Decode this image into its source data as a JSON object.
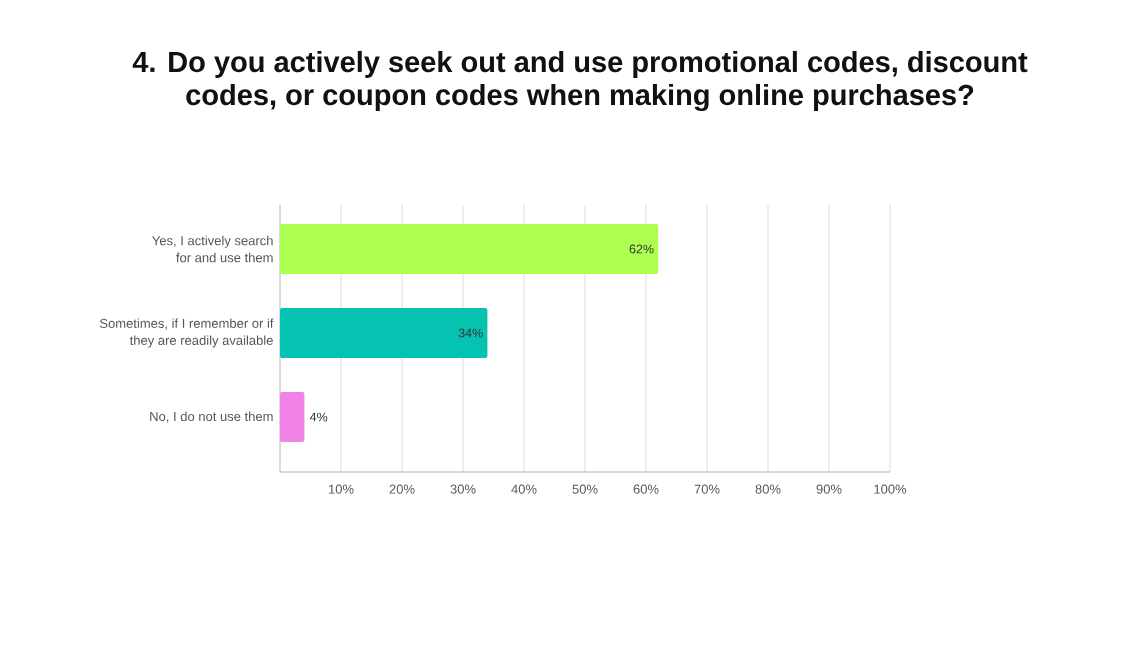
{
  "chart_data": {
    "type": "bar",
    "orientation": "horizontal",
    "title": "4. Do you actively seek out and use promotional codes, discount codes, or coupon codes when making online purchases?",
    "categories": [
      "Yes, I actively search for and use them",
      "Sometimes, if I remember or if they are readily available",
      "No, I do not use them"
    ],
    "values": [
      62,
      34,
      4
    ],
    "colors": [
      "#adff50",
      "#06c2b1",
      "#f283e6"
    ],
    "value_labels": [
      "62%",
      "34%",
      "4%"
    ],
    "xlim": [
      0,
      100
    ],
    "xticks": [
      {
        "value": 10,
        "label": "10%"
      },
      {
        "value": 20,
        "label": "20%"
      },
      {
        "value": 30,
        "label": "30%"
      },
      {
        "value": 40,
        "label": "40%"
      },
      {
        "value": 50,
        "label": "50%"
      },
      {
        "value": 60,
        "label": "60%"
      },
      {
        "value": 70,
        "label": "70%"
      },
      {
        "value": 80,
        "label": "80%"
      },
      {
        "value": 90,
        "label": "90%"
      },
      {
        "value": 100,
        "label": "100%"
      }
    ],
    "grid": "x"
  }
}
